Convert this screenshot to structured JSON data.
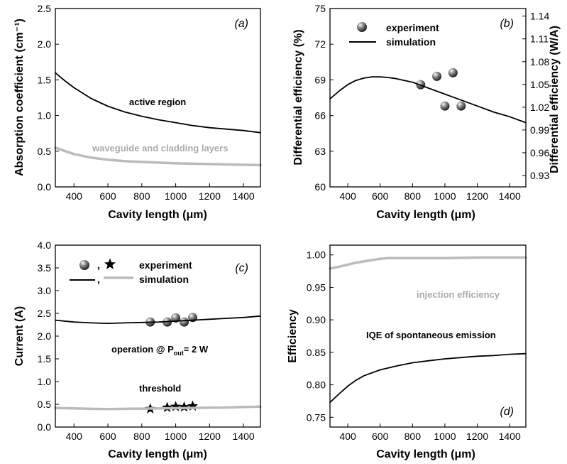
{
  "chart_data": [
    {
      "type": "line",
      "panel_tag": "(a)",
      "xlabel": "Cavity length (μm)",
      "ylabel": "Absorption coefficient (cm⁻¹)",
      "xlim": [
        290,
        1500
      ],
      "ylim": [
        0,
        2.5
      ],
      "xticks": [
        400,
        600,
        800,
        1000,
        1200,
        1400
      ],
      "yticks": [
        0,
        0.5,
        1.0,
        1.5,
        2.0,
        2.5
      ],
      "ytick_labels": [
        "0.0",
        "0.5",
        "1.0",
        "1.5",
        "2.0",
        "2.5"
      ],
      "series": [
        {
          "label": "active region",
          "color": "#000000",
          "x": [
            290,
            350,
            400,
            500,
            600,
            700,
            800,
            900,
            1000,
            1100,
            1200,
            1300,
            1400,
            1500
          ],
          "y": [
            1.6,
            1.48,
            1.39,
            1.24,
            1.13,
            1.05,
            0.99,
            0.94,
            0.9,
            0.86,
            0.83,
            0.81,
            0.79,
            0.76
          ]
        },
        {
          "label": "waveguide and cladding layers",
          "color": "#bbbbbb",
          "x": [
            290,
            350,
            400,
            500,
            600,
            700,
            800,
            900,
            1000,
            1100,
            1200,
            1300,
            1400,
            1500
          ],
          "y": [
            0.55,
            0.5,
            0.46,
            0.41,
            0.38,
            0.36,
            0.35,
            0.34,
            0.33,
            0.325,
            0.32,
            0.315,
            0.31,
            0.305
          ]
        }
      ],
      "annotations": [
        "active region",
        "waveguide and cladding layers"
      ]
    },
    {
      "type": "line",
      "panel_tag": "(b)",
      "xlabel": "Cavity length (μm)",
      "ylabel": "Differential efficiency (%)",
      "ylabel_right": "Differential efficiency (W/A)",
      "xlim": [
        290,
        1500
      ],
      "ylim": [
        60,
        75
      ],
      "ylim_right": [
        0.915,
        1.15
      ],
      "xticks": [
        400,
        600,
        800,
        1000,
        1200,
        1400
      ],
      "yticks": [
        60,
        63,
        66,
        69,
        72,
        75
      ],
      "yticks_right": [
        0.93,
        0.96,
        0.99,
        1.02,
        1.05,
        1.08,
        1.11,
        1.14
      ],
      "legend": {
        "position": "top-left",
        "entries": [
          "experiment",
          "simulation"
        ]
      },
      "series": [
        {
          "name": "experiment",
          "kind": "scatter",
          "color": "#444444",
          "x": [
            850,
            950,
            1000,
            1050,
            1100
          ],
          "y": [
            68.6,
            69.3,
            66.8,
            69.6,
            66.8
          ]
        },
        {
          "name": "simulation",
          "kind": "line",
          "color": "#000000",
          "x": [
            290,
            350,
            400,
            450,
            500,
            550,
            600,
            650,
            700,
            800,
            900,
            1000,
            1100,
            1200,
            1300,
            1400,
            1500
          ],
          "y": [
            67.4,
            68.1,
            68.6,
            68.95,
            69.15,
            69.25,
            69.25,
            69.2,
            69.1,
            68.8,
            68.3,
            67.8,
            67.3,
            66.8,
            66.3,
            65.9,
            65.4
          ]
        }
      ]
    },
    {
      "type": "line",
      "panel_tag": "(c)",
      "xlabel": "Cavity length (μm)",
      "ylabel": "Current (A)",
      "xlim": [
        290,
        1500
      ],
      "ylim": [
        0,
        4.0
      ],
      "xticks": [
        400,
        600,
        800,
        1000,
        1200,
        1400
      ],
      "yticks": [
        0,
        0.5,
        1.0,
        1.5,
        2.0,
        2.5,
        3.0,
        3.5,
        4.0
      ],
      "ytick_labels": [
        "0.0",
        "0.5",
        "1.0",
        "1.5",
        "2.0",
        "2.5",
        "3.0",
        "3.5",
        "4.0"
      ],
      "legend": {
        "position": "top-left",
        "entries": [
          "experiment",
          "simulation"
        ]
      },
      "series": [
        {
          "name": "operation experiment",
          "kind": "scatter",
          "color": "#444444",
          "x": [
            850,
            950,
            1000,
            1050,
            1100
          ],
          "y": [
            2.31,
            2.31,
            2.4,
            2.31,
            2.41
          ]
        },
        {
          "name": "threshold experiment",
          "kind": "star",
          "color": "#000000",
          "x": [
            850,
            950,
            1000,
            1050,
            1100
          ],
          "y": [
            0.4,
            0.43,
            0.45,
            0.44,
            0.46
          ]
        },
        {
          "name": "operation simulation",
          "kind": "line",
          "color": "#000000",
          "x": [
            290,
            400,
            500,
            600,
            700,
            800,
            900,
            1000,
            1100,
            1200,
            1300,
            1400,
            1500
          ],
          "y": [
            2.35,
            2.31,
            2.29,
            2.28,
            2.29,
            2.3,
            2.31,
            2.33,
            2.35,
            2.37,
            2.39,
            2.41,
            2.44
          ]
        },
        {
          "name": "threshold simulation",
          "kind": "line",
          "color": "#bbbbbb",
          "x": [
            290,
            400,
            500,
            600,
            700,
            800,
            900,
            1000,
            1100,
            1200,
            1300,
            1400,
            1500
          ],
          "y": [
            0.42,
            0.41,
            0.4,
            0.395,
            0.4,
            0.405,
            0.41,
            0.415,
            0.42,
            0.425,
            0.43,
            0.44,
            0.45
          ]
        }
      ],
      "annotations": [
        "operation @ P",
        "out",
        "= 2 W",
        "threshold"
      ]
    },
    {
      "type": "line",
      "panel_tag": "(d)",
      "xlabel": "Cavity length (μm)",
      "ylabel": "Efficiency",
      "xlim": [
        290,
        1500
      ],
      "ylim": [
        0.735,
        1.015
      ],
      "xticks": [
        400,
        600,
        800,
        1000,
        1200,
        1400
      ],
      "yticks": [
        0.75,
        0.8,
        0.85,
        0.9,
        0.95,
        1.0
      ],
      "ytick_labels": [
        "0.75",
        "0.80",
        "0.85",
        "0.90",
        "0.95",
        "1.00"
      ],
      "series": [
        {
          "label": "injection efficiency",
          "color": "#bbbbbb",
          "x": [
            290,
            350,
            400,
            450,
            500,
            550,
            600,
            650,
            700,
            800,
            900,
            1000,
            1200,
            1500
          ],
          "y": [
            0.979,
            0.982,
            0.985,
            0.988,
            0.99,
            0.992,
            0.994,
            0.995,
            0.995,
            0.995,
            0.995,
            0.995,
            0.996,
            0.996
          ]
        },
        {
          "label": "IQE of spontaneous emission",
          "color": "#000000",
          "x": [
            290,
            350,
            400,
            450,
            500,
            600,
            700,
            800,
            900,
            1000,
            1100,
            1200,
            1300,
            1400,
            1500
          ],
          "y": [
            0.773,
            0.787,
            0.798,
            0.807,
            0.814,
            0.823,
            0.829,
            0.834,
            0.837,
            0.84,
            0.842,
            0.844,
            0.845,
            0.847,
            0.848
          ]
        }
      ],
      "annotations": [
        "injection efficiency",
        "IQE of spontaneous emission"
      ]
    }
  ]
}
